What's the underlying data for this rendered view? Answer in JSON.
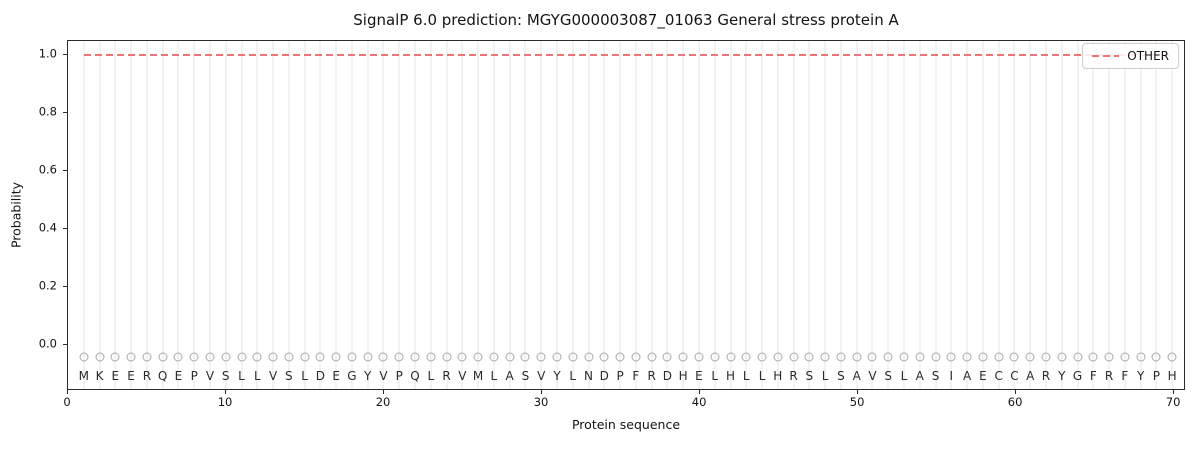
{
  "chart_data": {
    "type": "line",
    "title": "SignalP 6.0 prediction: MGYG000003087_01063 General stress protein A",
    "xlabel": "Protein sequence",
    "ylabel": "Probability",
    "xlim": [
      0,
      70.75
    ],
    "ylim": [
      -0.16,
      1.05
    ],
    "x_ticks": [
      {
        "v": 0,
        "t": "0"
      },
      {
        "v": 10,
        "t": "10"
      },
      {
        "v": 20,
        "t": "20"
      },
      {
        "v": 30,
        "t": "30"
      },
      {
        "v": 40,
        "t": "40"
      },
      {
        "v": 50,
        "t": "50"
      },
      {
        "v": 60,
        "t": "60"
      },
      {
        "v": 70,
        "t": "70"
      }
    ],
    "y_ticks": [
      {
        "v": 0.0,
        "t": "0.0"
      },
      {
        "v": 0.2,
        "t": "0.2"
      },
      {
        "v": 0.4,
        "t": "0.4"
      },
      {
        "v": 0.6,
        "t": "0.6"
      },
      {
        "v": 0.8,
        "t": "0.8"
      },
      {
        "v": 1.0,
        "t": "1.0"
      }
    ],
    "grid": {
      "vertical_line_per_residue": true,
      "color": "#f2f2f2"
    },
    "legend": {
      "position": "upper-right",
      "entries": [
        {
          "label": "OTHER",
          "color": "#ee7576",
          "linestyle": "dashed"
        }
      ]
    },
    "series": [
      {
        "name": "OTHER",
        "color": "#ee7576",
        "linestyle": "dashed",
        "x_start": 1,
        "x_end": 70,
        "constant_y": 1.0,
        "note": "OTHER probability is 1.0 at every residue 1-70"
      }
    ],
    "sequence": "MKEERQEPVSLLVSLDEGYVPQLRVMLASVYLNDPFRDHELHLLHRSLSAVSLASIAECCARYGFRFYPH",
    "sequence_markers": {
      "shape": "open-circle",
      "edge_color": "#a9a9a9",
      "marker_y": -0.05,
      "letter_y": -0.115,
      "letter_color": "#2b2b2b"
    }
  }
}
